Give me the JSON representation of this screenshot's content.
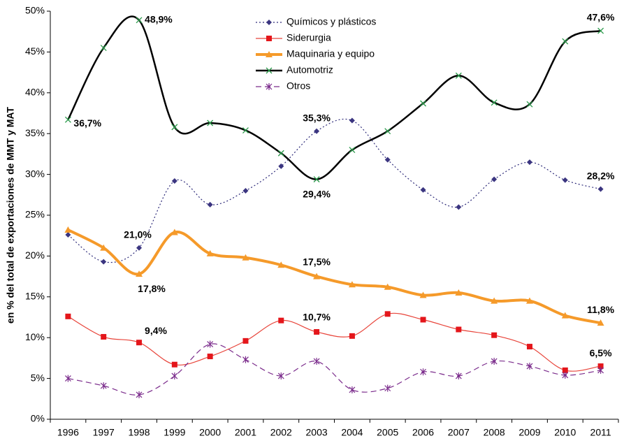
{
  "chart_data": {
    "type": "line",
    "y_label": "en % del total de exportaciones de MMT y MAT",
    "categories": [
      "1996",
      "1997",
      "1998",
      "1999",
      "2000",
      "2001",
      "2002",
      "2003",
      "2004",
      "2005",
      "2006",
      "2007",
      "2008",
      "2009",
      "2010",
      "2011"
    ],
    "ylim": [
      0,
      50
    ],
    "yticks": [
      {
        "value": 0,
        "label": "0%"
      },
      {
        "value": 5,
        "label": "5%"
      },
      {
        "value": 10,
        "label": "10%"
      },
      {
        "value": 15,
        "label": "15%"
      },
      {
        "value": 20,
        "label": "20%"
      },
      {
        "value": 25,
        "label": "25%"
      },
      {
        "value": 30,
        "label": "30%"
      },
      {
        "value": 35,
        "label": "35%"
      },
      {
        "value": 40,
        "label": "40%"
      },
      {
        "value": 45,
        "label": "45%"
      },
      {
        "value": 50,
        "label": "50%"
      }
    ],
    "grid": false,
    "smooth": true,
    "series": [
      {
        "name": "Químicos y plásticos",
        "color": "#2e2b7a",
        "line_style": "dotted",
        "line_width": 1.2,
        "marker": "diamond",
        "marker_color": "#3b3580",
        "values": [
          22.6,
          19.3,
          21.0,
          29.2,
          26.3,
          28.0,
          31.0,
          35.3,
          36.6,
          31.8,
          28.1,
          26.0,
          29.4,
          31.5,
          29.3,
          28.2
        ],
        "value_labels": [
          null,
          null,
          "21,0%",
          null,
          null,
          null,
          null,
          "35,3%",
          null,
          null,
          null,
          null,
          null,
          null,
          null,
          "28,2%"
        ]
      },
      {
        "name": "Siderurgia",
        "color": "#e8443a",
        "line_style": "solid",
        "line_width": 1.2,
        "marker": "square",
        "marker_color": "#e4161b",
        "values": [
          12.6,
          10.1,
          9.4,
          6.7,
          7.7,
          9.6,
          12.1,
          10.7,
          10.2,
          12.9,
          12.2,
          11.0,
          10.3,
          8.9,
          6.0,
          6.5
        ],
        "value_labels": [
          null,
          null,
          "9,4%",
          null,
          null,
          null,
          null,
          "10,7%",
          null,
          null,
          null,
          null,
          null,
          null,
          null,
          "6,5%"
        ]
      },
      {
        "name": "Maquinaria y equipo",
        "color": "#f59a2a",
        "line_style": "solid",
        "line_width": 4,
        "marker": "triangle",
        "marker_color": "#f59a2a",
        "values": [
          23.2,
          21.0,
          17.8,
          22.9,
          20.3,
          19.8,
          18.9,
          17.5,
          16.5,
          16.2,
          15.2,
          15.5,
          14.5,
          14.5,
          12.7,
          11.8
        ],
        "value_labels": [
          null,
          null,
          "17,8%",
          null,
          null,
          null,
          null,
          "17,5%",
          null,
          null,
          null,
          null,
          null,
          null,
          null,
          "11,8%"
        ]
      },
      {
        "name": "Automotriz",
        "color": "#000000",
        "line_style": "solid",
        "line_width": 2.5,
        "marker": "x",
        "marker_color": "#2a9a4a",
        "values": [
          36.7,
          45.5,
          48.9,
          35.8,
          36.3,
          35.4,
          32.6,
          29.4,
          33.0,
          35.3,
          38.7,
          42.1,
          38.8,
          38.6,
          46.3,
          47.6
        ],
        "value_labels": [
          "36,7%",
          null,
          "48,9%",
          null,
          null,
          null,
          null,
          "29,4%",
          null,
          null,
          null,
          null,
          null,
          null,
          null,
          "47,6%"
        ]
      },
      {
        "name": "Otros",
        "color": "#7b2c8c",
        "line_style": "dashed",
        "line_width": 1.2,
        "marker": "asterisk",
        "marker_color": "#7b2c8c",
        "values": [
          5.0,
          4.1,
          3.0,
          5.3,
          9.2,
          7.3,
          5.3,
          7.1,
          3.6,
          3.8,
          5.8,
          5.3,
          7.1,
          6.5,
          5.4,
          6.0
        ],
        "value_labels": null
      }
    ]
  }
}
